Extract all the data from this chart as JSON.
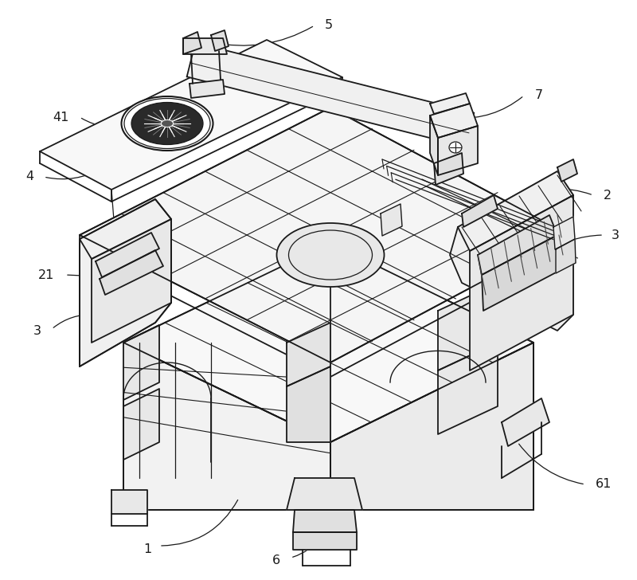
{
  "bg": "#ffffff",
  "lc": "#1a1a1a",
  "lw": 1.3,
  "ann_lw": 0.9,
  "ann_color": "#1a1a1a",
  "fontsize": 11.5
}
